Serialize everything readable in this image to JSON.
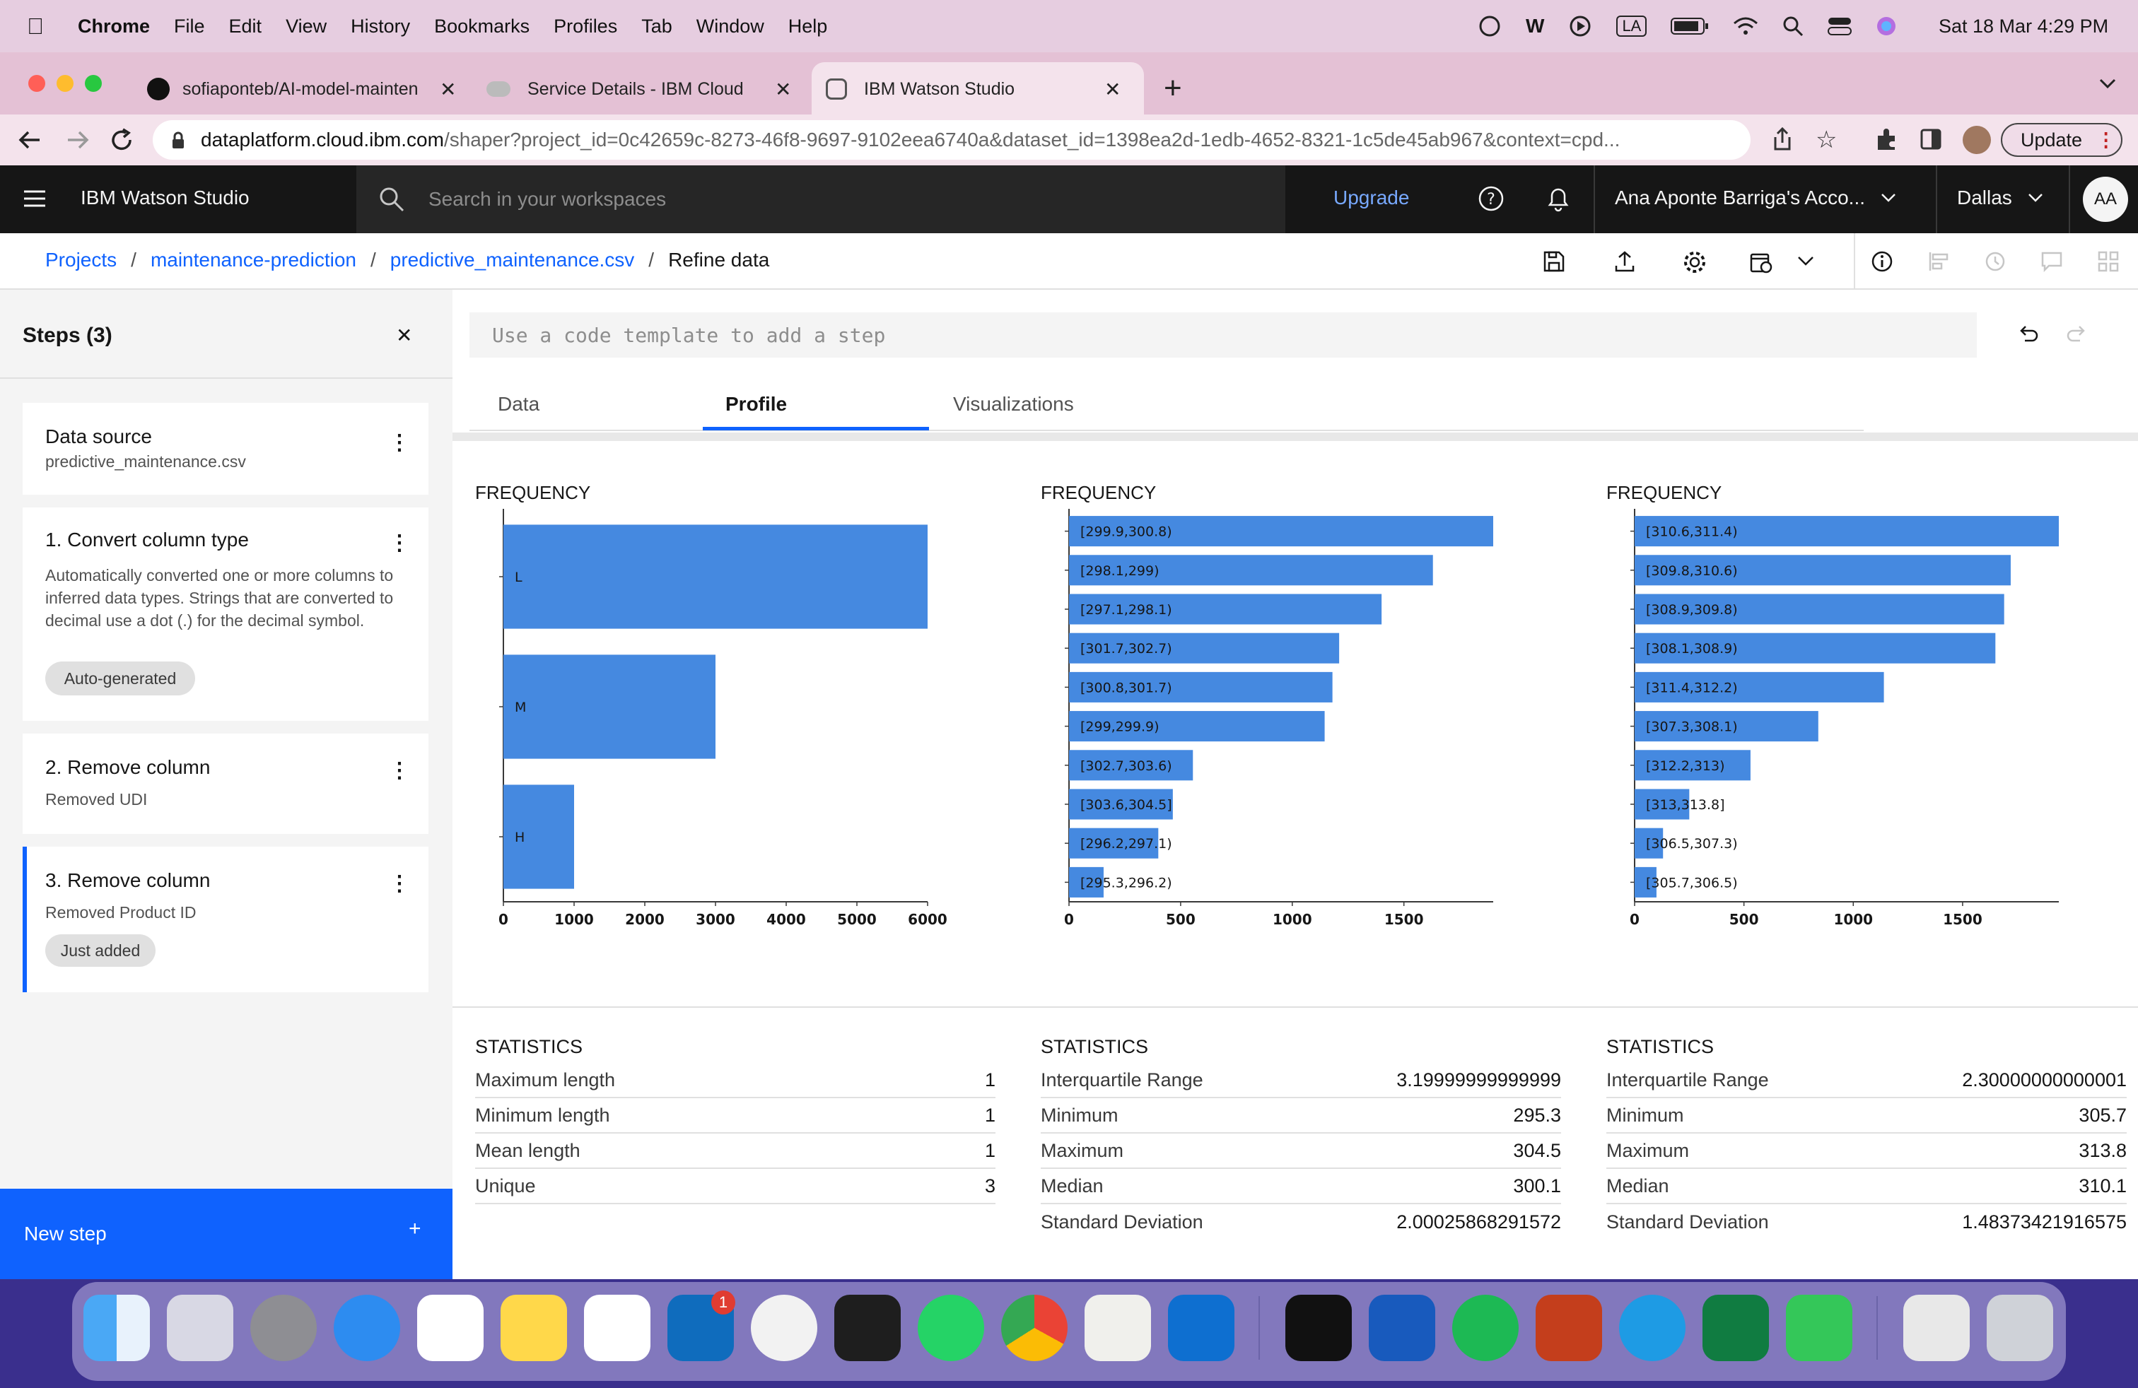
{
  "menubar": {
    "app": "Chrome",
    "items": [
      "File",
      "Edit",
      "View",
      "History",
      "Bookmarks",
      "Profiles",
      "Tab",
      "Window",
      "Help"
    ],
    "input_badge": "LA",
    "clock": "Sat 18 Mar  4:29 PM"
  },
  "browser": {
    "tabs": [
      {
        "title": "sofiaponteb/AI-model-mainten"
      },
      {
        "title": "Service Details - IBM Cloud"
      },
      {
        "title": "IBM Watson Studio"
      }
    ],
    "url_host": "dataplatform.cloud.ibm.com",
    "url_path": "/shaper?project_id=0c42659c-8273-46f8-9697-9102eea6740a&dataset_id=1398ea2d-1edb-4652-8321-1c5de45ab967&context=cpd...",
    "update_label": "Update"
  },
  "header": {
    "product": "IBM Watson Studio",
    "search_placeholder": "Search in your workspaces",
    "upgrade": "Upgrade",
    "account": "Ana Aponte Barriga's Acco...",
    "region": "Dallas",
    "avatar": "AA"
  },
  "breadcrumb": {
    "projects": "Projects",
    "project": "maintenance-prediction",
    "file": "predictive_maintenance.csv",
    "current": "Refine data"
  },
  "steps": {
    "title": "Steps (3)",
    "items": [
      {
        "title": "Data source",
        "subtitle": "predictive_maintenance.csv"
      },
      {
        "title": "1. Convert column type",
        "description": "Automatically converted one or more columns to inferred data types. Strings that are converted to decimal use a dot (.) for the decimal symbol.",
        "tag": "Auto-generated"
      },
      {
        "title": "2. Remove column",
        "subtitle": "Removed UDI"
      },
      {
        "title": "3. Remove column",
        "subtitle": "Removed Product ID",
        "tag": "Just added"
      }
    ],
    "new_step": "New step"
  },
  "refine": {
    "code_placeholder": "Use a code template to add a step",
    "tabs": [
      "Data",
      "Profile",
      "Visualizations"
    ]
  },
  "chart_data": [
    {
      "type": "bar",
      "orientation": "horizontal",
      "title": "FREQUENCY",
      "categories": [
        "L",
        "M",
        "H"
      ],
      "values": [
        6000,
        3000,
        1000
      ],
      "xlim": [
        0,
        6000
      ],
      "xticks": [
        "0",
        "1000",
        "2000",
        "3000",
        "4000",
        "5000",
        "6000"
      ]
    },
    {
      "type": "bar",
      "orientation": "horizontal",
      "title": "FREQUENCY",
      "categories": [
        "[299.9,300.8)",
        "[298.1,299)",
        "[297.1,298.1)",
        "[301.7,302.7)",
        "[300.8,301.7)",
        "[299,299.9)",
        "[302.7,303.6)",
        "[303.6,304.5]",
        "[296.2,297.1)",
        "[295.3,296.2)"
      ],
      "values": [
        1900,
        1630,
        1400,
        1210,
        1180,
        1145,
        555,
        465,
        400,
        155
      ],
      "xlim": [
        0,
        1900
      ],
      "xticks": [
        "0",
        "500",
        "1000",
        "1500"
      ]
    },
    {
      "type": "bar",
      "orientation": "horizontal",
      "title": "FREQUENCY",
      "categories": [
        "[310.6,311.4)",
        "[309.8,310.6)",
        "[308.9,309.8)",
        "[308.1,308.9)",
        "[311.4,312.2)",
        "[307.3,308.1)",
        "[312.2,313)",
        "[313,313.8]",
        "[306.5,307.3)",
        "[305.7,306.5)"
      ],
      "values": [
        1940,
        1720,
        1690,
        1650,
        1140,
        840,
        530,
        250,
        130,
        100
      ],
      "xlim": [
        0,
        1940
      ],
      "xticks": [
        "0",
        "500",
        "1000",
        "1500"
      ]
    }
  ],
  "statistics": [
    {
      "title": "STATISTICS",
      "rows": [
        [
          "Maximum length",
          "1"
        ],
        [
          "Minimum length",
          "1"
        ],
        [
          "Mean length",
          "1"
        ],
        [
          "Unique",
          "3"
        ]
      ]
    },
    {
      "title": "STATISTICS",
      "rows": [
        [
          "Interquartile Range",
          "3.19999999999999"
        ],
        [
          "Minimum",
          "295.3"
        ],
        [
          "Maximum",
          "304.5"
        ],
        [
          "Median",
          "300.1"
        ],
        [
          "Standard Deviation",
          "2.00025868291572"
        ]
      ]
    },
    {
      "title": "STATISTICS",
      "rows": [
        [
          "Interquartile Range",
          "2.30000000000001"
        ],
        [
          "Minimum",
          "305.7"
        ],
        [
          "Maximum",
          "313.8"
        ],
        [
          "Median",
          "310.1"
        ],
        [
          "Standard Deviation",
          "1.48373421916575"
        ]
      ]
    }
  ],
  "dock": {
    "badges": [
      "1"
    ]
  }
}
